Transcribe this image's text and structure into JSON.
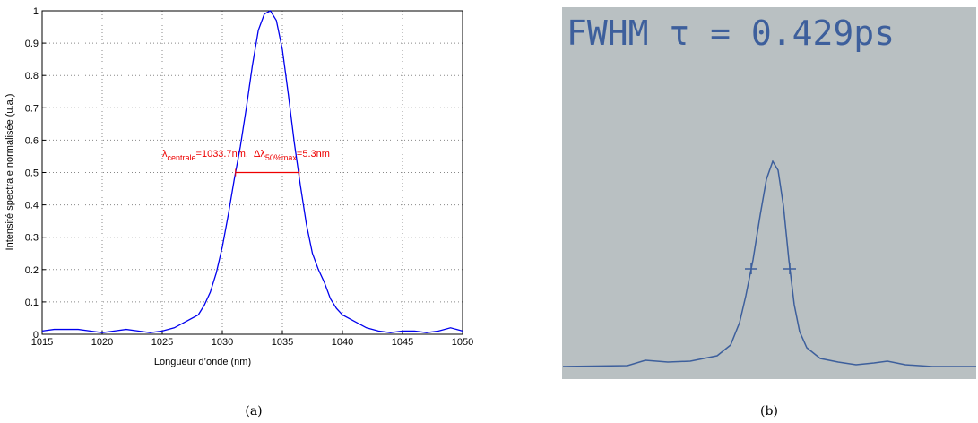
{
  "chart_data": {
    "type": "line",
    "xlabel": "Longueur d’onde (nm)",
    "ylabel": "Intensité spectrale normalisée (u.a.)",
    "xlim": [
      1015,
      1050
    ],
    "xticks": [
      1015,
      1020,
      1025,
      1030,
      1035,
      1040,
      1045,
      1050
    ],
    "ylim": [
      0,
      1
    ],
    "yticks": [
      0,
      0.1,
      0.2,
      0.3,
      0.4,
      0.5,
      0.6,
      0.7,
      0.8,
      0.9,
      1
    ],
    "grid": true,
    "x": [
      1015,
      1016,
      1017,
      1018,
      1019,
      1020,
      1021,
      1022,
      1023,
      1024,
      1025,
      1026,
      1027,
      1028,
      1028.5,
      1029,
      1029.5,
      1030,
      1030.5,
      1031,
      1031.5,
      1032,
      1032.5,
      1033,
      1033.5,
      1034,
      1034.5,
      1035,
      1035.5,
      1036,
      1036.5,
      1037,
      1037.5,
      1038,
      1038.5,
      1039,
      1039.5,
      1040,
      1041,
      1042,
      1043,
      1044,
      1045,
      1046,
      1047,
      1048,
      1049,
      1050
    ],
    "series": [
      {
        "color": "#0000ee",
        "values": [
          0.01,
          0.015,
          0.015,
          0.015,
          0.01,
          0.005,
          0.01,
          0.015,
          0.01,
          0.005,
          0.01,
          0.02,
          0.04,
          0.06,
          0.09,
          0.13,
          0.19,
          0.27,
          0.37,
          0.48,
          0.58,
          0.7,
          0.83,
          0.94,
          0.99,
          1.0,
          0.97,
          0.88,
          0.74,
          0.59,
          0.46,
          0.34,
          0.25,
          0.2,
          0.16,
          0.11,
          0.08,
          0.06,
          0.04,
          0.02,
          0.01,
          0.005,
          0.01,
          0.01,
          0.005,
          0.01,
          0.02,
          0.01
        ]
      }
    ],
    "annotation": [
      "λ",
      "centrale",
      "=1033.7nm,  Δλ",
      "50%max",
      "=5.3nm"
    ],
    "annotation_color": "#ee0000",
    "fwhm_marker": {
      "x": [
        1031.1,
        1036.4
      ],
      "y": 0.5
    }
  },
  "screen": {
    "readout": "FWHM τ = 0.429ps"
  },
  "captions": [
    "(a)",
    "(b)"
  ]
}
